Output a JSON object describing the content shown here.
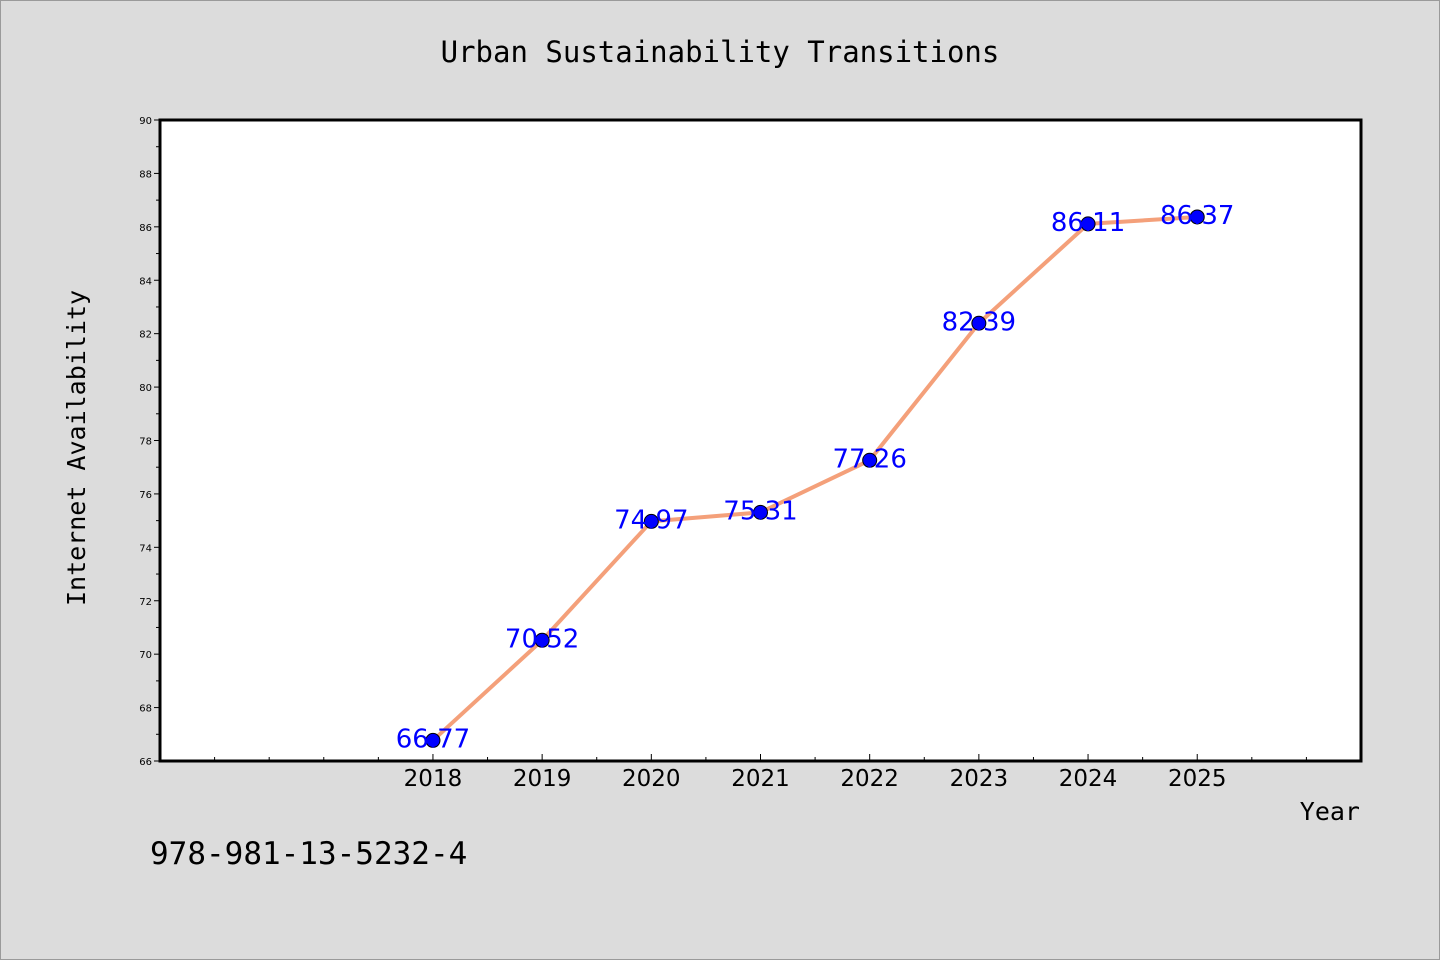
{
  "chart_data": {
    "type": "line",
    "title": "Urban Sustainability Transitions",
    "xlabel": "Year",
    "ylabel": "Internet Availability",
    "x": [
      2018,
      2019,
      2020,
      2021,
      2022,
      2023,
      2024,
      2025
    ],
    "series": [
      {
        "values": [
          66.77,
          70.52,
          74.97,
          75.31,
          77.26,
          82.39,
          86.11,
          86.37
        ],
        "data_labels": [
          "66.77",
          "70.52",
          "74.97",
          "75.31",
          "77.26",
          "82.39",
          "86.11",
          "86.37"
        ]
      }
    ],
    "xlim": [
      2015.5,
      2026.5
    ],
    "ylim": [
      66,
      90
    ],
    "yticks": [
      66,
      68,
      70,
      72,
      74,
      76,
      78,
      80,
      82,
      84,
      86,
      88,
      90
    ],
    "grid": false,
    "legend": "none",
    "colors": {
      "line": "#f4a07a",
      "marker": "#0000ff",
      "data_label": "#0000ff",
      "background": "#dcdcdc",
      "plot_background": "#ffffff"
    }
  },
  "annotation": "978-981-13-5232-4"
}
